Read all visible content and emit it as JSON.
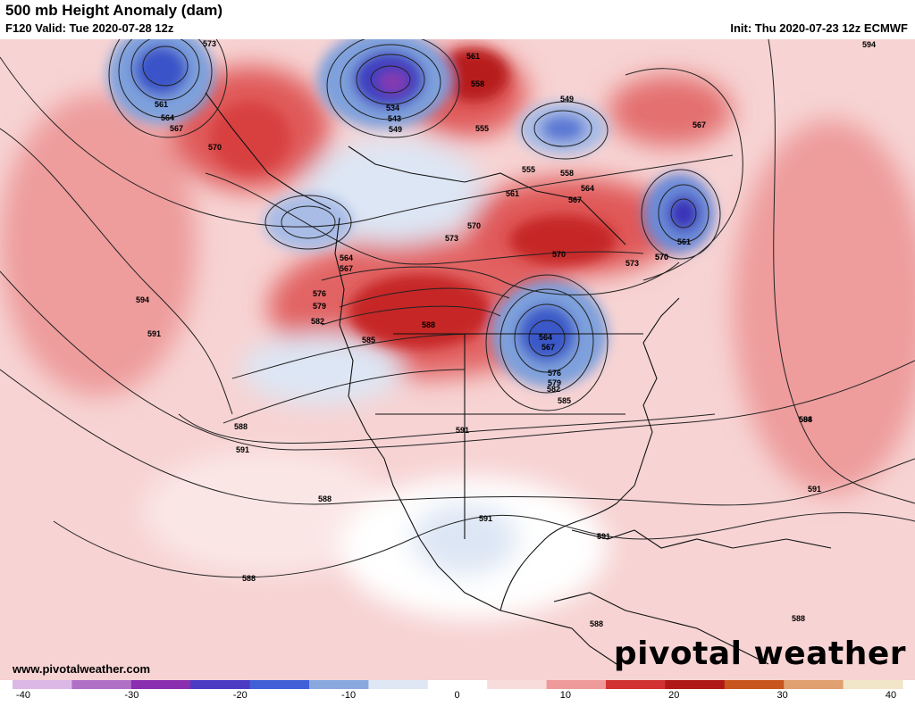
{
  "header": {
    "title": "500 mb Height Anomaly (dam)",
    "valid": "F120 Valid: Tue 2020-07-28 12z",
    "init": "Init: Thu 2020-07-23 12z ECMWF"
  },
  "footer": {
    "credit": "www.pivotalweather.com",
    "brand": "pivotal weather"
  },
  "colorbar": {
    "min": -40,
    "max": 40,
    "ticks": [
      "-40",
      "-30",
      "-20",
      "-10",
      "0",
      "10",
      "20",
      "30",
      "40"
    ],
    "colors": [
      "#dcb8e6",
      "#b070c8",
      "#8a2fb0",
      "#4b3cc4",
      "#4060d8",
      "#8aa8e0",
      "#dfe7f4",
      "#ffffff",
      "#f8dcdc",
      "#ee9a9a",
      "#d23232",
      "#b01818",
      "#c8541e",
      "#e0a070",
      "#f2e6c8"
    ]
  },
  "map": {
    "contour_labels": [
      "573",
      "561",
      "564",
      "567",
      "570",
      "534",
      "543",
      "549",
      "561",
      "558",
      "555",
      "549",
      "567",
      "594",
      "555",
      "558",
      "561",
      "564",
      "567",
      "564",
      "567",
      "570",
      "573",
      "576",
      "579",
      "582",
      "585",
      "588",
      "570",
      "570",
      "573",
      "564",
      "567",
      "576",
      "579",
      "582",
      "585",
      "594",
      "591",
      "588",
      "591",
      "591",
      "588",
      "588",
      "591",
      "588",
      "594",
      "591",
      "591",
      "588",
      "588",
      "561",
      "570"
    ]
  }
}
